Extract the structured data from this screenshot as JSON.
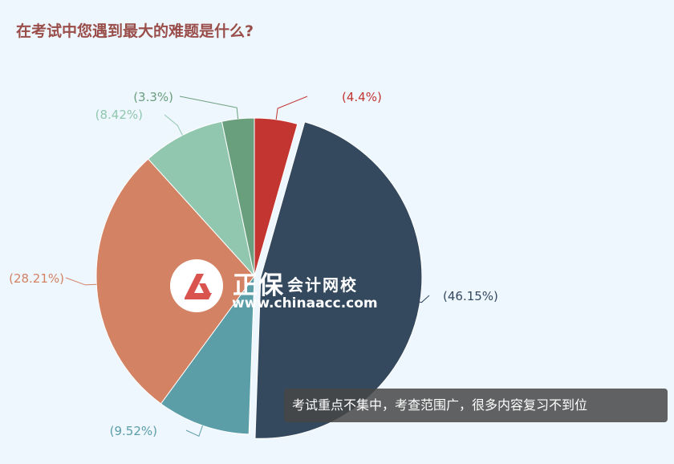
{
  "chart_data": {
    "type": "pie",
    "title": "在考试中您遇到最大的难题是什么?",
    "slices": [
      {
        "label": "(4.4%)",
        "value": 4.4,
        "color": "#c23531"
      },
      {
        "label": "(46.15%)",
        "value": 46.15,
        "color": "#34495e"
      },
      {
        "label": "(9.52%)",
        "value": 9.52,
        "color": "#5b9ea8"
      },
      {
        "label": "(28.21%)",
        "value": 28.21,
        "color": "#d38263"
      },
      {
        "label": "(8.42%)",
        "value": 8.42,
        "color": "#91c7ae"
      },
      {
        "label": "(3.3%)",
        "value": 3.3,
        "color": "#6a9f7e"
      }
    ],
    "highlighted_slice": "(46.15%)"
  },
  "tooltip": {
    "text": "考试重点不集中，考查范围广，很多内容复习不到位"
  },
  "watermark": {
    "brand": "正保",
    "brand_sub": "会计网校",
    "url": "www.chinaacc.com"
  }
}
